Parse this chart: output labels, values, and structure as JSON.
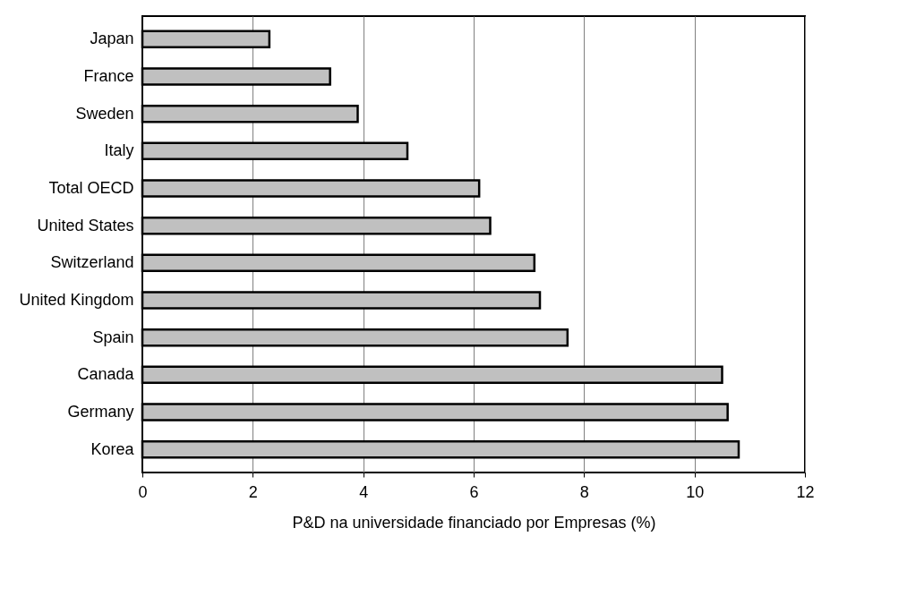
{
  "chart_data": {
    "type": "bar",
    "orientation": "horizontal",
    "xlabel": "P&D na universidade financiado por Empresas (%)",
    "categories": [
      "Japan",
      "France",
      "Sweden",
      "Italy",
      "Total OECD",
      "United States",
      "Switzerland",
      "United Kingdom",
      "Spain",
      "Canada",
      "Germany",
      "Korea"
    ],
    "values": [
      2.3,
      3.4,
      3.9,
      4.8,
      6.1,
      6.3,
      7.1,
      7.2,
      7.7,
      10.5,
      10.6,
      10.8
    ],
    "color": "#c0c0c0",
    "xlim": [
      0,
      12
    ],
    "xticks": [
      0,
      2,
      4,
      6,
      8,
      10,
      12
    ],
    "grid": "x"
  }
}
